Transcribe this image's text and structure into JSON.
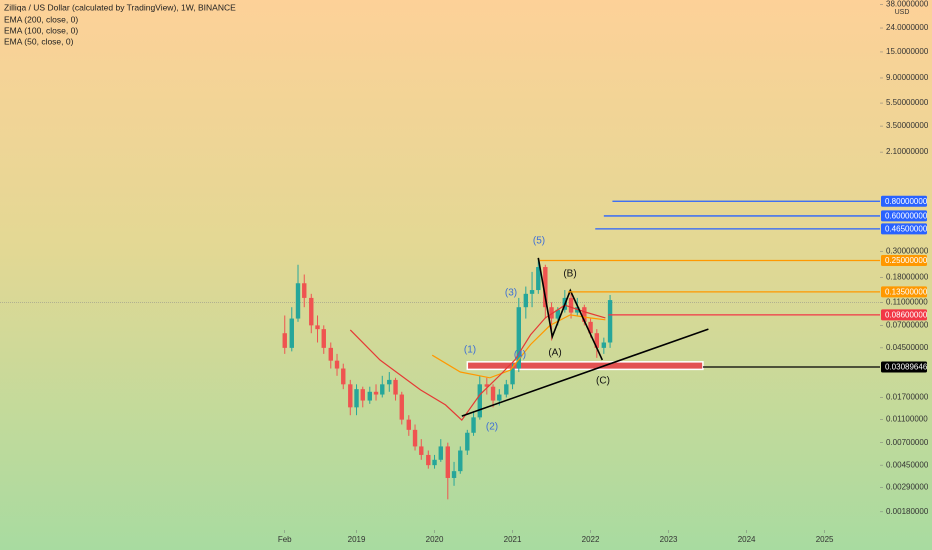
{
  "chart_data": {
    "type": "candlestick",
    "title": "Zilliqa / US Dollar (calculated by TradingView), 1W, BINANCE",
    "y_axis_unit": "USD",
    "log_scale": true,
    "up_color": "#26a69a",
    "down_color": "#ef5350",
    "candles": {
      "x": [
        2018.08,
        2018.17,
        2018.25,
        2018.33,
        2018.42,
        2018.5,
        2018.58,
        2018.67,
        2018.75,
        2018.83,
        2018.92,
        2019.0,
        2019.08,
        2019.17,
        2019.25,
        2019.33,
        2019.42,
        2019.5,
        2019.58,
        2019.67,
        2019.75,
        2019.83,
        2019.92,
        2020.0,
        2020.08,
        2020.17,
        2020.25,
        2020.33,
        2020.42,
        2020.5,
        2020.58,
        2020.67,
        2020.75,
        2020.83,
        2020.92,
        2021.0,
        2021.08,
        2021.17,
        2021.25,
        2021.33,
        2021.42,
        2021.5,
        2021.58,
        2021.67,
        2021.75,
        2021.83,
        2021.92,
        2022.0,
        2022.08,
        2022.17,
        2022.25
      ],
      "open": [
        0.06,
        0.045,
        0.08,
        0.16,
        0.12,
        0.07,
        0.065,
        0.045,
        0.035,
        0.03,
        0.022,
        0.014,
        0.02,
        0.016,
        0.019,
        0.018,
        0.022,
        0.024,
        0.018,
        0.011,
        0.009,
        0.0065,
        0.0055,
        0.0045,
        0.005,
        0.0065,
        0.0035,
        0.004,
        0.006,
        0.0085,
        0.0115,
        0.022,
        0.021,
        0.016,
        0.018,
        0.022,
        0.03,
        0.1,
        0.13,
        0.14,
        0.22,
        0.1,
        0.08,
        0.095,
        0.12,
        0.09,
        0.1,
        0.075,
        0.06,
        0.045,
        0.05
      ],
      "high": [
        0.085,
        0.1,
        0.23,
        0.19,
        0.13,
        0.085,
        0.07,
        0.05,
        0.04,
        0.033,
        0.024,
        0.022,
        0.021,
        0.021,
        0.022,
        0.026,
        0.028,
        0.025,
        0.019,
        0.012,
        0.01,
        0.0075,
        0.006,
        0.0055,
        0.0075,
        0.007,
        0.0048,
        0.0065,
        0.009,
        0.013,
        0.026,
        0.025,
        0.022,
        0.02,
        0.024,
        0.034,
        0.12,
        0.15,
        0.2,
        0.26,
        0.23,
        0.11,
        0.1,
        0.14,
        0.13,
        0.12,
        0.105,
        0.08,
        0.065,
        0.055,
        0.127
      ],
      "low": [
        0.04,
        0.042,
        0.075,
        0.1,
        0.06,
        0.05,
        0.04,
        0.03,
        0.026,
        0.02,
        0.012,
        0.012,
        0.014,
        0.015,
        0.016,
        0.017,
        0.019,
        0.016,
        0.01,
        0.008,
        0.006,
        0.005,
        0.0042,
        0.0042,
        0.0048,
        0.0023,
        0.003,
        0.0038,
        0.0055,
        0.008,
        0.011,
        0.018,
        0.014,
        0.0145,
        0.017,
        0.02,
        0.028,
        0.08,
        0.1,
        0.13,
        0.08,
        0.052,
        0.07,
        0.09,
        0.08,
        0.085,
        0.07,
        0.055,
        0.037,
        0.04,
        0.045
      ],
      "close": [
        0.045,
        0.08,
        0.16,
        0.12,
        0.07,
        0.065,
        0.045,
        0.035,
        0.03,
        0.022,
        0.014,
        0.02,
        0.016,
        0.019,
        0.018,
        0.022,
        0.024,
        0.018,
        0.011,
        0.009,
        0.0065,
        0.0055,
        0.0045,
        0.005,
        0.0065,
        0.0035,
        0.004,
        0.006,
        0.0085,
        0.0115,
        0.022,
        0.021,
        0.016,
        0.018,
        0.022,
        0.03,
        0.1,
        0.13,
        0.14,
        0.22,
        0.1,
        0.08,
        0.095,
        0.12,
        0.09,
        0.1,
        0.075,
        0.06,
        0.045,
        0.05,
        0.115
      ]
    },
    "series": [
      {
        "name": "EMA (200, close, 0)",
        "color": "#2962ff",
        "x": [],
        "values": []
      },
      {
        "name": "EMA (100, close, 0)",
        "color": "#ff9800",
        "x": [
          2019.97,
          2020.33,
          2020.71,
          2020.97,
          2021.23,
          2021.48,
          2021.74,
          2021.99,
          2022.19
        ],
        "values": [
          0.039,
          0.028,
          0.025,
          0.029,
          0.048,
          0.07,
          0.086,
          0.081,
          0.078
        ]
      },
      {
        "name": "EMA (50, close, 0)",
        "color": "#e53935",
        "x": [
          2018.92,
          2019.3,
          2019.82,
          2020.14,
          2020.35,
          2020.58,
          2020.84,
          2021.03,
          2021.23,
          2021.42,
          2021.67,
          2021.93,
          2022.19
        ],
        "values": [
          0.064,
          0.0355,
          0.0197,
          0.0147,
          0.0109,
          0.0179,
          0.0264,
          0.0355,
          0.058,
          0.081,
          0.104,
          0.091,
          0.081
        ]
      }
    ],
    "last_price": 0.11,
    "levels": [
      {
        "value": 0.8,
        "label": "0.80000000",
        "color": "#2962ff",
        "from": 2022.28
      },
      {
        "value": 0.6,
        "label": "0.60000000",
        "color": "#2962ff",
        "from": 2022.17
      },
      {
        "value": 0.465,
        "label": "0.46500000",
        "color": "#2962ff",
        "from": 2022.06
      },
      {
        "value": 0.25,
        "label": "0.25000000",
        "color": "#ff9800",
        "from": 2021.35
      },
      {
        "value": 0.135,
        "label": "0.13500000",
        "color": "#ff9800",
        "from": 2021.71
      },
      {
        "value": 0.086,
        "label": "0.08600000",
        "color": "#f23645",
        "from": 2022.23
      },
      {
        "value": 0.03089646,
        "label": "0.03089646",
        "color": "#000000",
        "from": 2023.44
      }
    ],
    "zone": {
      "from": 2020.42,
      "to": 2023.44,
      "low": 0.0295,
      "high": 0.0342,
      "color": "#e53945"
    },
    "trendline": {
      "x": [
        2020.35,
        2023.51
      ],
      "y": [
        0.0118,
        0.065
      ],
      "color": "#000000"
    },
    "zigzag": {
      "x": [
        2021.33,
        2021.51,
        2021.74,
        2022.15
      ],
      "y": [
        0.263,
        0.056,
        0.139,
        0.0355
      ],
      "color": "#000000"
    },
    "waves": [
      {
        "label": "(1)",
        "color": "#3d6fd6"
      },
      {
        "label": "(2)",
        "color": "#3d6fd6"
      },
      {
        "label": "(3)",
        "color": "#3d6fd6"
      },
      {
        "label": "(4)",
        "color": "#3d6fd6"
      },
      {
        "label": "(5)",
        "color": "#3d6fd6"
      },
      {
        "label": "(A)",
        "color": "#111111"
      },
      {
        "label": "(B)",
        "color": "#111111"
      },
      {
        "label": "(C)",
        "color": "#111111"
      }
    ],
    "xlim": [
      2014.43,
      2025.71
    ],
    "ylim": [
      0.00126,
      41.6
    ],
    "xticks": [
      {
        "value": 2018.08,
        "label": "Feb"
      },
      2019,
      2020,
      2021,
      2022,
      2023,
      2024,
      2025
    ],
    "yticks": [
      {
        "value": 38,
        "label": "38.0000000"
      },
      {
        "value": 24,
        "label": "24.0000000"
      },
      {
        "value": 15,
        "label": "15.0000000"
      },
      {
        "value": 9,
        "label": "9.00000000"
      },
      {
        "value": 5.5,
        "label": "5.50000000"
      },
      {
        "value": 3.5,
        "label": "3.50000000"
      },
      {
        "value": 2.1,
        "label": "2.10000000"
      },
      {
        "value": 0.3,
        "label": "0.30000000"
      },
      {
        "value": 0.18,
        "label": "0.18000000"
      },
      {
        "value": 0.11,
        "label": "0.11000000"
      },
      {
        "value": 0.07,
        "label": "0.07000000"
      },
      {
        "value": 0.045,
        "label": "0.04500000"
      },
      {
        "value": 0.017,
        "label": "0.01700000"
      },
      {
        "value": 0.011,
        "label": "0.01100000"
      },
      {
        "value": 0.007,
        "label": "0.00700000"
      },
      {
        "value": 0.0045,
        "label": "0.00450000"
      },
      {
        "value": 0.0029,
        "label": "0.00290000"
      },
      {
        "value": 0.0018,
        "label": "0.00180000"
      }
    ]
  }
}
